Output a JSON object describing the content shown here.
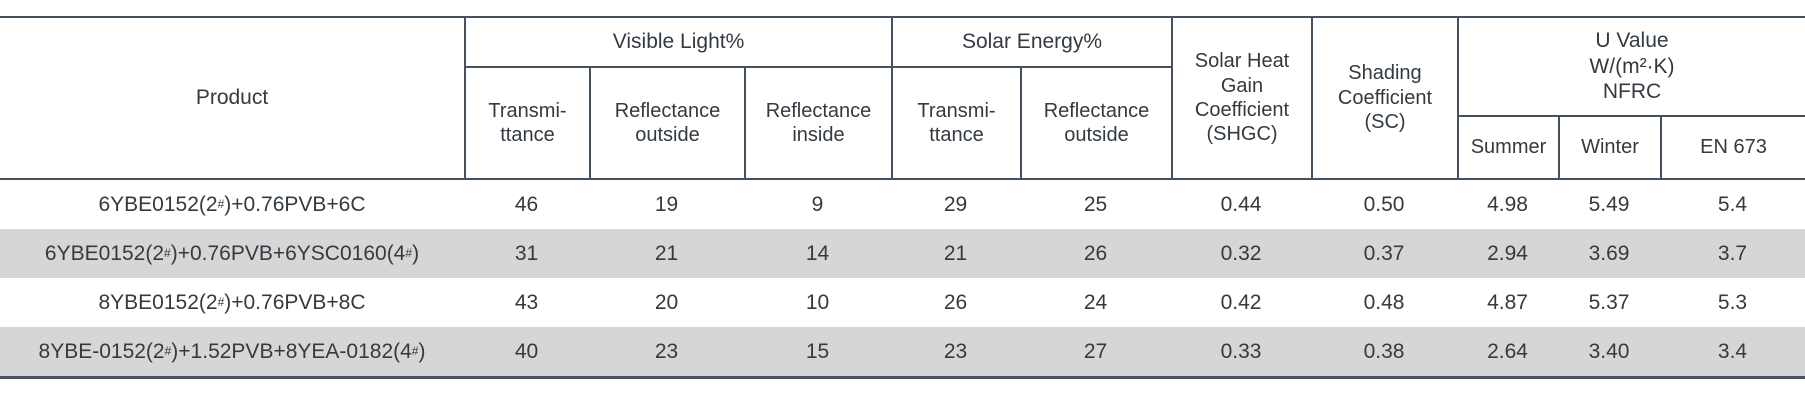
{
  "theme": {
    "line_color": "#45525d",
    "stripe_color": "#d6d6d6",
    "text_color": "#333a40"
  },
  "table": {
    "header": {
      "product": "Product",
      "visible_light": {
        "label": "Visible Light%",
        "subs": [
          "Transmi-\nttance",
          "Reflectance\noutside",
          "Reflectance\ninside"
        ]
      },
      "solar_energy": {
        "label": "Solar Energy%",
        "subs": [
          "Transmi-\nttance",
          "Reflectance\noutside"
        ]
      },
      "shgc": "Solar Heat\nGain\nCoefficient\n(SHGC)",
      "sc": "Shading\nCoefficient\n(SC)",
      "u_value": {
        "label": "U Value\nW/(m²·K)\nNFRC",
        "subs": [
          "Summer",
          "Winter",
          "EN 673"
        ]
      }
    },
    "rows": [
      {
        "product": "6YBE0152(2#)+0.76PVB+6C",
        "values": [
          "46",
          "19",
          "9",
          "29",
          "25",
          "0.44",
          "0.50",
          "4.98",
          "5.49",
          "5.4"
        ]
      },
      {
        "product": "6YBE0152(2#)+0.76PVB+6YSC0160(4#)",
        "values": [
          "31",
          "21",
          "14",
          "21",
          "26",
          "0.32",
          "0.37",
          "2.94",
          "3.69",
          "3.7"
        ]
      },
      {
        "product": "8YBE0152(2#)+0.76PVB+8C",
        "values": [
          "43",
          "20",
          "10",
          "26",
          "24",
          "0.42",
          "0.48",
          "4.87",
          "5.37",
          "5.3"
        ]
      },
      {
        "product": "8YBE-0152(2#)+1.52PVB+8YEA-0182(4#)",
        "values": [
          "40",
          "23",
          "15",
          "23",
          "27",
          "0.33",
          "0.38",
          "2.64",
          "3.40",
          "3.4"
        ]
      }
    ]
  }
}
